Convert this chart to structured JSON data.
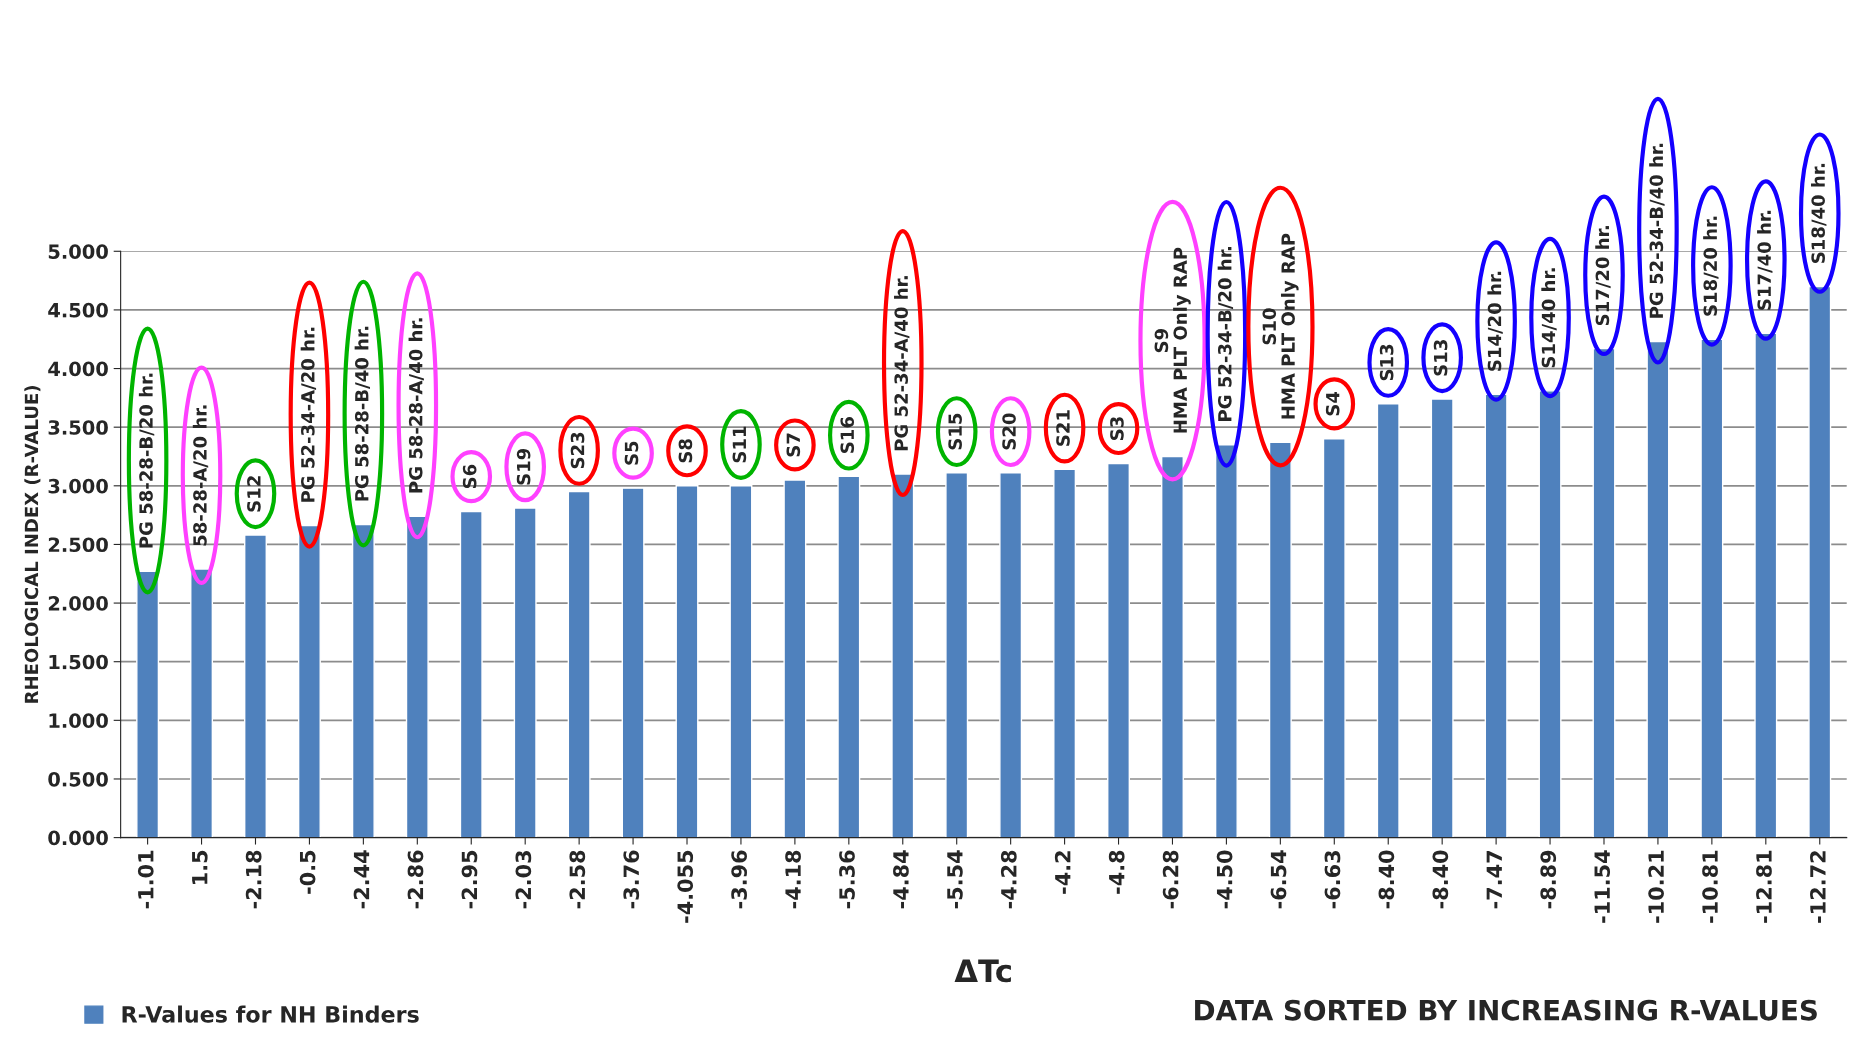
{
  "chart_data": {
    "type": "bar",
    "categories": [
      "-1.01",
      "1.5",
      "-2.18",
      "-0.5",
      "-2.44",
      "-2.86",
      "-2.95",
      "-2.03",
      "-2.58",
      "-3.76",
      "-4.055",
      "-3.96",
      "-4.18",
      "-5.36",
      "-4.84",
      "-5.54",
      "-4.28",
      "-4.2",
      "-4.8",
      "-6.28",
      "-4.50",
      "-6.54",
      "-6.63",
      "-8.40",
      "-8.40",
      "-7.47",
      "-8.89",
      "-11.54",
      "-10.21",
      "-10.81",
      "-12.81",
      "-12.72"
    ],
    "series": [
      {
        "name": "R-Values for NH Binders",
        "color": "#4f81bd",
        "values": [
          2.27,
          2.29,
          2.58,
          2.66,
          2.67,
          2.74,
          2.78,
          2.81,
          2.95,
          2.98,
          3.0,
          3.0,
          3.05,
          3.08,
          3.1,
          3.11,
          3.11,
          3.14,
          3.19,
          3.25,
          3.35,
          3.37,
          3.4,
          3.7,
          3.74,
          3.78,
          3.81,
          4.17,
          4.23,
          4.25,
          4.3,
          4.7
        ]
      }
    ],
    "xlabel": "ΔTc",
    "ylabel": "RHEOLOGICAL INDEX (R-VALUE)",
    "ylim": [
      0,
      5
    ],
    "yticks": [
      {
        "value": 0,
        "label": "0.000"
      },
      {
        "value": 0.5,
        "label": "0.500"
      },
      {
        "value": 1,
        "label": "1.000"
      },
      {
        "value": 1.5,
        "label": "1.500"
      },
      {
        "value": 2,
        "label": "2.000"
      },
      {
        "value": 2.5,
        "label": "2.500"
      },
      {
        "value": 3,
        "label": "3.000"
      },
      {
        "value": 3.5,
        "label": "3.500"
      },
      {
        "value": 4,
        "label": "4.000"
      },
      {
        "value": 4.5,
        "label": "4.500"
      },
      {
        "value": 5,
        "label": "5.000"
      }
    ],
    "grid": "y",
    "legend": "bottom left",
    "annotations": [
      {
        "text": "PG 58-28-B/20 hr.",
        "x": "-1.01",
        "y": 2.27
      },
      {
        "text": "58-28-A/20 hr.",
        "x": "1.5",
        "y": 2.29
      },
      {
        "text": "S12",
        "x": "-2.18",
        "y": 2.58
      },
      {
        "text": "PG 52-34-A/20 hr.",
        "x": "-0.5",
        "y": 2.66
      },
      {
        "text": "PG 58-28-B/40 hr.",
        "x": "-2.44",
        "y": 2.67
      },
      {
        "text": "PG 58-28-A/40 hr.",
        "x": "-2.86",
        "y": 2.74
      },
      {
        "text": "S6",
        "x": "-2.95",
        "y": 2.78
      },
      {
        "text": "S19",
        "x": "-2.03",
        "y": 2.81
      },
      {
        "text": "S23",
        "x": "-2.58",
        "y": 2.95
      },
      {
        "text": "S5",
        "x": "-3.76",
        "y": 2.98
      },
      {
        "text": "S8",
        "x": "-4.055",
        "y": 3.0
      },
      {
        "text": "S11",
        "x": "-3.96",
        "y": 3.0
      },
      {
        "text": "S7",
        "x": "-4.18",
        "y": 3.05
      },
      {
        "text": "S16",
        "x": "-5.36",
        "y": 3.08
      },
      {
        "text": "PG 52-34-A/40 hr.",
        "x": "-4.84",
        "y": 3.1
      },
      {
        "text": "S15",
        "x": "-5.54",
        "y": 3.11
      },
      {
        "text": "S20",
        "x": "-4.28",
        "y": 3.11
      },
      {
        "text": "S21",
        "x": "-4.2",
        "y": 3.14
      },
      {
        "text": "S3",
        "x": "-4.8",
        "y": 3.19
      },
      {
        "text": "S9\nHMA PLT Only RAP",
        "x": "-6.28",
        "y": 3.25
      },
      {
        "text": "PG 52-34-B/20 hr.",
        "x": "-4.50",
        "y": 3.35
      },
      {
        "text": "S10\nHMA PLT Only RAP",
        "x": "-6.54",
        "y": 3.37
      },
      {
        "text": "S4",
        "x": "-6.63",
        "y": 3.4
      },
      {
        "text": "S13",
        "x": "-8.40",
        "y": 3.7
      },
      {
        "text": "S13",
        "x": "-8.40",
        "y": 3.74
      },
      {
        "text": "S14/20 hr.",
        "x": "-7.47",
        "y": 3.78
      },
      {
        "text": "S14/40 hr.",
        "x": "-8.89",
        "y": 3.81
      },
      {
        "text": "S17/20 hr.",
        "x": "-11.54",
        "y": 4.17
      },
      {
        "text": "PG 52-34-B/40 hr.",
        "x": "-10.21",
        "y": 4.23
      },
      {
        "text": "S18/20 hr.",
        "x": "-10.81",
        "y": 4.25
      },
      {
        "text": "S17/40 hr.",
        "x": "-12.81",
        "y": 4.3
      },
      {
        "text": "S18/40 hr.",
        "x": "-12.72",
        "y": 4.7
      },
      "DATA SORTED BY INCREASING R-VALUES"
    ]
  }
}
